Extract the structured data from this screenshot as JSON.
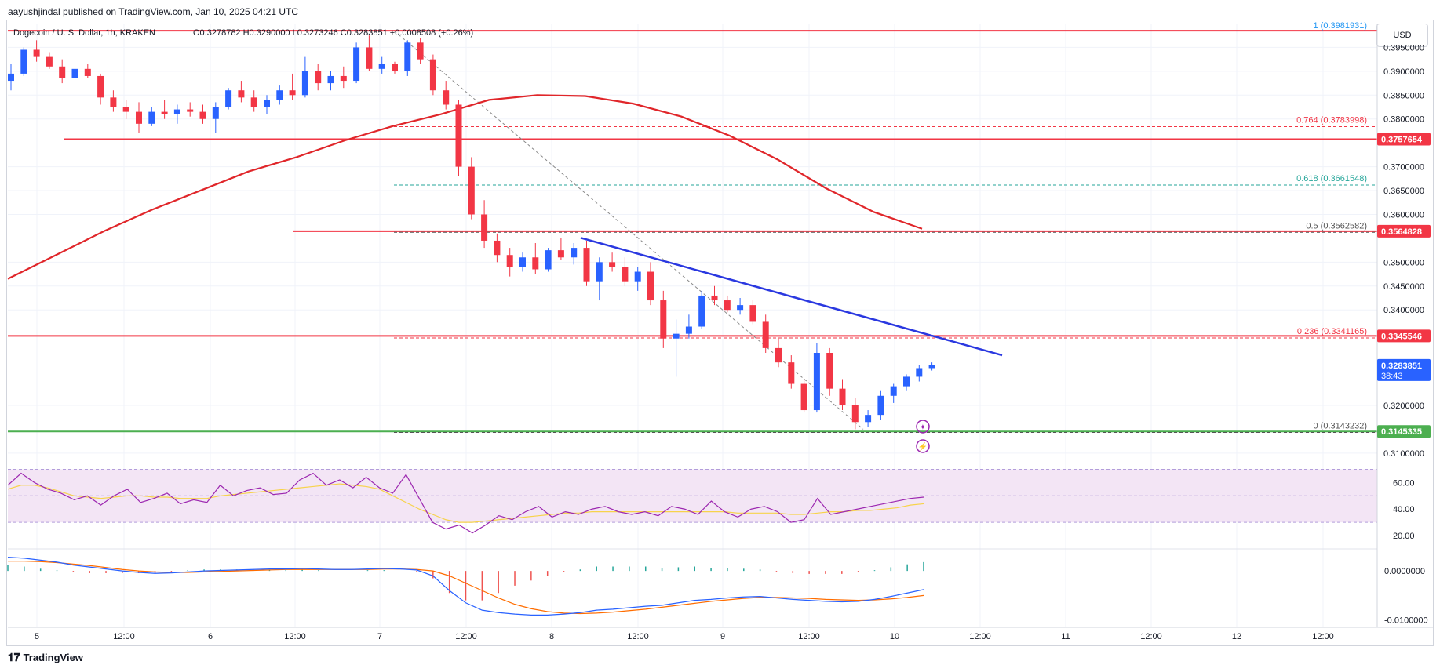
{
  "publisher_line": "aayushjindal published on TradingView.com, Jan 10, 2025 04:21 UTC",
  "currency_button": "USD",
  "brand": "TradingView",
  "colors": {
    "up": "#2962ff",
    "down": "#f23645",
    "resistance": "#f23645",
    "support": "#4caf50",
    "trendline": "#2a38e0",
    "ma": "#e0262a",
    "rsi": "#9c27b0",
    "rsi_ma": "#f7d34b",
    "macd": "#2962ff",
    "signal": "#ff6d00",
    "fib_teal": "#26a69a"
  },
  "chart_data": [
    {
      "type": "candlestick",
      "title": "Dogecoin / U. S. Dollar, 1h, KRAKEN",
      "ohlc_header": {
        "O": "0.3278782",
        "H": "0.3290000",
        "L": "0.3273246",
        "C": "0.3283851",
        "change": "+0.0008508 (+0.26%)"
      },
      "ylim": [
        0.308,
        0.4
      ],
      "y_ticks": [
        "0.3950000",
        "0.3900000",
        "0.3850000",
        "0.3800000",
        "0.3700000",
        "0.3650000",
        "0.3600000",
        "0.3500000",
        "0.3450000",
        "0.3400000",
        "0.3200000",
        "0.3100000"
      ],
      "x_ticks": [
        "5",
        "12:00",
        "6",
        "12:00",
        "7",
        "12:00",
        "8",
        "12:00",
        "9",
        "12:00",
        "10",
        "12:00",
        "11",
        "12:00",
        "12",
        "12:00"
      ],
      "price_tags": [
        {
          "value": "0.3757654",
          "color": "#f23645"
        },
        {
          "value": "0.3564828",
          "color": "#f23645"
        },
        {
          "value": "0.3345546",
          "color": "#f23645"
        },
        {
          "value": "0.3283851",
          "sub": "38:43",
          "color": "#2962ff"
        },
        {
          "value": "0.3145335",
          "color": "#4caf50"
        }
      ],
      "fib_levels": [
        {
          "label": "1 (0.3981931)",
          "level": 0.3981931,
          "color": "#2196f3"
        },
        {
          "label": "0.764 (0.3783998)",
          "level": 0.3783998,
          "color": "#f23645"
        },
        {
          "label": "0.618 (0.3661548)",
          "level": 0.3661548,
          "color": "#26a69a"
        },
        {
          "label": "0.5 (0.3562582)",
          "level": 0.3562582,
          "color": "#555555"
        },
        {
          "label": "0.236 (0.3341165)",
          "level": 0.3341165,
          "color": "#f23645"
        },
        {
          "label": "0 (0.3143232)",
          "level": 0.3143232,
          "color": "#555555"
        }
      ],
      "horizontal_lines": [
        {
          "level": 0.3985,
          "color": "#f23645"
        },
        {
          "level": 0.3757654,
          "color": "#f23645"
        },
        {
          "level": 0.3564828,
          "color": "#f23645"
        },
        {
          "level": 0.3345546,
          "color": "#f23645"
        },
        {
          "level": 0.3145335,
          "color": "#4caf50"
        }
      ],
      "trendline": {
        "from": [
          0.48,
          0.3551
        ],
        "to": [
          1.32,
          0.3305
        ]
      },
      "moving_average": [
        0.3465,
        0.3515,
        0.3565,
        0.361,
        0.365,
        0.369,
        0.372,
        0.3755,
        0.3785,
        0.381,
        0.384,
        0.385,
        0.3848,
        0.3832,
        0.3805,
        0.3765,
        0.3715,
        0.3655,
        0.3605,
        0.357
      ],
      "candles": [
        [
          0.388,
          0.3915,
          0.386,
          0.3895
        ],
        [
          0.3895,
          0.395,
          0.389,
          0.3945
        ],
        [
          0.3945,
          0.3965,
          0.392,
          0.393
        ],
        [
          0.393,
          0.394,
          0.3905,
          0.391
        ],
        [
          0.391,
          0.3925,
          0.3875,
          0.3885
        ],
        [
          0.3885,
          0.3915,
          0.388,
          0.3905
        ],
        [
          0.3905,
          0.3915,
          0.3885,
          0.389
        ],
        [
          0.389,
          0.3895,
          0.383,
          0.3845
        ],
        [
          0.3845,
          0.386,
          0.3815,
          0.3825
        ],
        [
          0.3825,
          0.384,
          0.38,
          0.3815
        ],
        [
          0.3815,
          0.3835,
          0.377,
          0.379
        ],
        [
          0.379,
          0.3825,
          0.3785,
          0.3815
        ],
        [
          0.3815,
          0.384,
          0.38,
          0.381
        ],
        [
          0.381,
          0.383,
          0.379,
          0.382
        ],
        [
          0.382,
          0.3835,
          0.3805,
          0.3815
        ],
        [
          0.3815,
          0.383,
          0.379,
          0.38
        ],
        [
          0.38,
          0.3835,
          0.377,
          0.3825
        ],
        [
          0.3825,
          0.3865,
          0.382,
          0.386
        ],
        [
          0.386,
          0.388,
          0.3835,
          0.3845
        ],
        [
          0.3845,
          0.386,
          0.3815,
          0.3825
        ],
        [
          0.3825,
          0.385,
          0.381,
          0.384
        ],
        [
          0.384,
          0.387,
          0.383,
          0.386
        ],
        [
          0.386,
          0.3895,
          0.384,
          0.385
        ],
        [
          0.385,
          0.393,
          0.3845,
          0.39
        ],
        [
          0.39,
          0.3915,
          0.386,
          0.3875
        ],
        [
          0.3875,
          0.39,
          0.386,
          0.389
        ],
        [
          0.389,
          0.391,
          0.3865,
          0.388
        ],
        [
          0.388,
          0.396,
          0.3875,
          0.395
        ],
        [
          0.395,
          0.3975,
          0.39,
          0.3905
        ],
        [
          0.3905,
          0.393,
          0.3895,
          0.3915
        ],
        [
          0.3915,
          0.392,
          0.3895,
          0.39
        ],
        [
          0.39,
          0.3965,
          0.389,
          0.396
        ],
        [
          0.396,
          0.397,
          0.3915,
          0.3925
        ],
        [
          0.3925,
          0.3935,
          0.385,
          0.386
        ],
        [
          0.386,
          0.388,
          0.382,
          0.383
        ],
        [
          0.383,
          0.384,
          0.368,
          0.37
        ],
        [
          0.37,
          0.372,
          0.359,
          0.36
        ],
        [
          0.36,
          0.363,
          0.353,
          0.3545
        ],
        [
          0.3545,
          0.356,
          0.35,
          0.3515
        ],
        [
          0.3515,
          0.353,
          0.347,
          0.349
        ],
        [
          0.349,
          0.352,
          0.348,
          0.351
        ],
        [
          0.351,
          0.354,
          0.3475,
          0.3485
        ],
        [
          0.3485,
          0.353,
          0.348,
          0.3525
        ],
        [
          0.3525,
          0.355,
          0.3505,
          0.351
        ],
        [
          0.351,
          0.354,
          0.3495,
          0.353
        ],
        [
          0.353,
          0.3545,
          0.345,
          0.346
        ],
        [
          0.346,
          0.351,
          0.342,
          0.35
        ],
        [
          0.35,
          0.352,
          0.348,
          0.349
        ],
        [
          0.349,
          0.351,
          0.345,
          0.346
        ],
        [
          0.346,
          0.349,
          0.344,
          0.348
        ],
        [
          0.348,
          0.35,
          0.341,
          0.342
        ],
        [
          0.342,
          0.344,
          0.332,
          0.334
        ],
        [
          0.334,
          0.338,
          0.326,
          0.335
        ],
        [
          0.335,
          0.339,
          0.334,
          0.3365
        ],
        [
          0.3365,
          0.344,
          0.336,
          0.343
        ],
        [
          0.343,
          0.345,
          0.341,
          0.342
        ],
        [
          0.342,
          0.343,
          0.3395,
          0.34
        ],
        [
          0.34,
          0.3425,
          0.339,
          0.341
        ],
        [
          0.341,
          0.342,
          0.337,
          0.3375
        ],
        [
          0.3375,
          0.339,
          0.331,
          0.332
        ],
        [
          0.332,
          0.334,
          0.328,
          0.329
        ],
        [
          0.329,
          0.3305,
          0.3235,
          0.3245
        ],
        [
          0.3245,
          0.3255,
          0.3185,
          0.319
        ],
        [
          0.319,
          0.333,
          0.3185,
          0.331
        ],
        [
          0.331,
          0.332,
          0.322,
          0.3235
        ],
        [
          0.3235,
          0.3255,
          0.319,
          0.32
        ],
        [
          0.32,
          0.3215,
          0.315,
          0.3165
        ],
        [
          0.3165,
          0.319,
          0.3155,
          0.318
        ],
        [
          0.318,
          0.323,
          0.317,
          0.322
        ],
        [
          0.322,
          0.3245,
          0.3205,
          0.324
        ],
        [
          0.324,
          0.3265,
          0.323,
          0.326
        ],
        [
          0.326,
          0.3285,
          0.325,
          0.3278
        ],
        [
          0.3278,
          0.329,
          0.3273,
          0.3284
        ]
      ]
    },
    {
      "type": "line",
      "name": "RSI",
      "ylim": [
        10,
        75
      ],
      "y_ticks": [
        "60.00",
        "40.00",
        "20.00"
      ],
      "band": [
        30,
        70
      ],
      "series": [
        {
          "values": [
            58,
            67,
            60,
            55,
            52,
            47,
            50,
            43,
            50,
            55,
            45,
            48,
            52,
            44,
            47,
            45,
            58,
            50,
            54,
            56,
            51,
            52,
            62,
            67,
            58,
            62,
            56,
            64,
            56,
            52,
            66,
            48,
            30,
            25,
            28,
            22,
            28,
            35,
            32,
            38,
            42,
            34,
            38,
            36,
            40,
            42,
            38,
            36,
            38,
            35,
            42,
            40,
            36,
            46,
            38,
            34,
            40,
            42,
            38,
            30,
            32,
            48,
            36,
            38,
            40,
            42,
            44,
            46,
            48,
            49
          ]
        },
        {
          "values": [
            55,
            58,
            58,
            56,
            53,
            50,
            49,
            48,
            49,
            50,
            50,
            49,
            49,
            48,
            48,
            48,
            50,
            51,
            52,
            53,
            54,
            55,
            56,
            57,
            58,
            59,
            58,
            57,
            55,
            50,
            45,
            40,
            36,
            32,
            30,
            30,
            31,
            32,
            33,
            34,
            35,
            36,
            37,
            37,
            38,
            38,
            38,
            38,
            38,
            38,
            38,
            38,
            38,
            38,
            38,
            37,
            37,
            37,
            37,
            36,
            36,
            37,
            38,
            38,
            39,
            39,
            40,
            41,
            43,
            44
          ]
        }
      ]
    },
    {
      "type": "line",
      "name": "MACD",
      "ylim": [
        -0.0115,
        0.0045
      ],
      "y_ticks": [
        "0.0000000",
        "-0.0100000"
      ],
      "series": [
        {
          "values": [
            0.0028,
            0.0026,
            0.0022,
            0.0018,
            0.0012,
            0.0008,
            0.0004,
            0.0,
            -0.0003,
            -0.0005,
            -0.0004,
            -0.0002,
            0.0,
            0.0001,
            0.0002,
            0.0003,
            0.0004,
            0.0004,
            0.0005,
            0.0004,
            0.0003,
            0.0003,
            0.0004,
            0.0005,
            0.0004,
            0.0002,
            -0.001,
            -0.004,
            -0.0065,
            -0.008,
            -0.0085,
            -0.0088,
            -0.009,
            -0.009,
            -0.0088,
            -0.0085,
            -0.008,
            -0.0078,
            -0.0075,
            -0.0072,
            -0.007,
            -0.0065,
            -0.006,
            -0.0058,
            -0.0055,
            -0.0053,
            -0.0052,
            -0.0055,
            -0.0058,
            -0.006,
            -0.0062,
            -0.0063,
            -0.0062,
            -0.0058,
            -0.0052,
            -0.0045,
            -0.0038
          ]
        },
        {
          "values": [
            0.002,
            0.002,
            0.0019,
            0.0017,
            0.0014,
            0.0011,
            0.0007,
            0.0003,
            0.0,
            -0.0002,
            -0.0003,
            -0.0003,
            -0.0002,
            -0.0001,
            0.0,
            0.0001,
            0.0002,
            0.0003,
            0.0003,
            0.0003,
            0.0003,
            0.0003,
            0.0003,
            0.0004,
            0.0004,
            0.0003,
            0.0,
            -0.001,
            -0.0025,
            -0.004,
            -0.0055,
            -0.0068,
            -0.0077,
            -0.0083,
            -0.0086,
            -0.0087,
            -0.0086,
            -0.0084,
            -0.0081,
            -0.0078,
            -0.0074,
            -0.007,
            -0.0066,
            -0.0062,
            -0.0059,
            -0.0056,
            -0.0054,
            -0.0054,
            -0.0055,
            -0.0056,
            -0.0058,
            -0.0059,
            -0.006,
            -0.0059,
            -0.0057,
            -0.0054,
            -0.005
          ]
        }
      ]
    }
  ]
}
